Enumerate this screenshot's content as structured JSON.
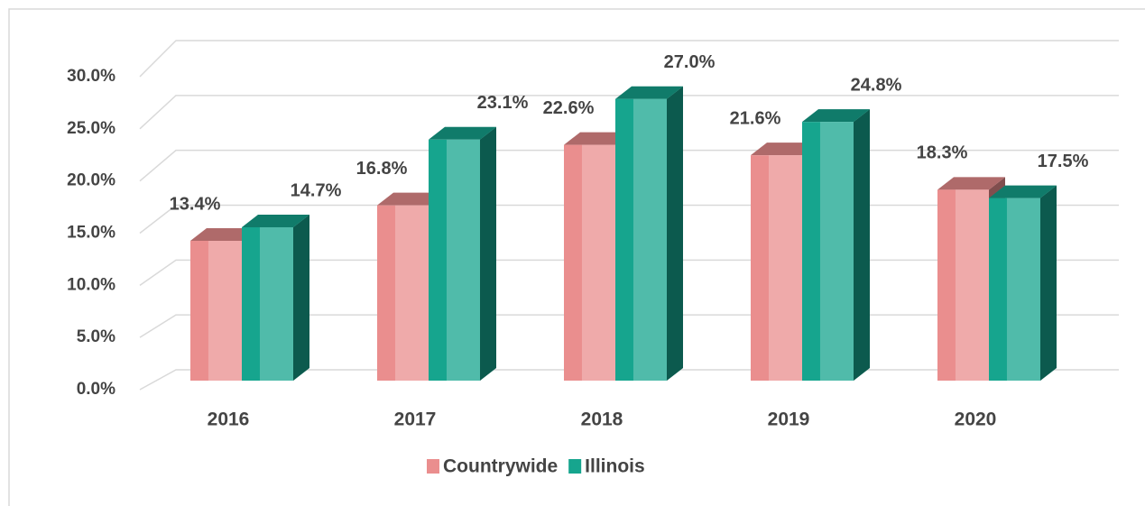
{
  "chart_data": {
    "type": "bar3d",
    "categories": [
      "2016",
      "2017",
      "2018",
      "2019",
      "2020"
    ],
    "series": [
      {
        "name": "Countrywide",
        "color": "#ea8e8e",
        "values": [
          13.4,
          16.8,
          22.6,
          21.6,
          18.3
        ],
        "value_labels": [
          "13.4%",
          "16.8%",
          "22.6%",
          "21.6%",
          "18.3%"
        ]
      },
      {
        "name": "Illinois",
        "color": "#16a58e",
        "values": [
          14.7,
          23.1,
          27.0,
          24.8,
          17.5
        ],
        "value_labels": [
          "14.7%",
          "23.1%",
          "27.0%",
          "24.8%",
          "17.5%"
        ]
      }
    ],
    "ylim": [
      0,
      30
    ],
    "yticks": [
      {
        "value": 0,
        "label": "0.0%"
      },
      {
        "value": 5,
        "label": "5.0%"
      },
      {
        "value": 10,
        "label": "10.0%"
      },
      {
        "value": 15,
        "label": "15.0%"
      },
      {
        "value": 20,
        "label": "20.0%"
      },
      {
        "value": 25,
        "label": "25.0%"
      },
      {
        "value": 30,
        "label": "30.0%"
      }
    ],
    "grid": true,
    "legend": "bottom"
  }
}
